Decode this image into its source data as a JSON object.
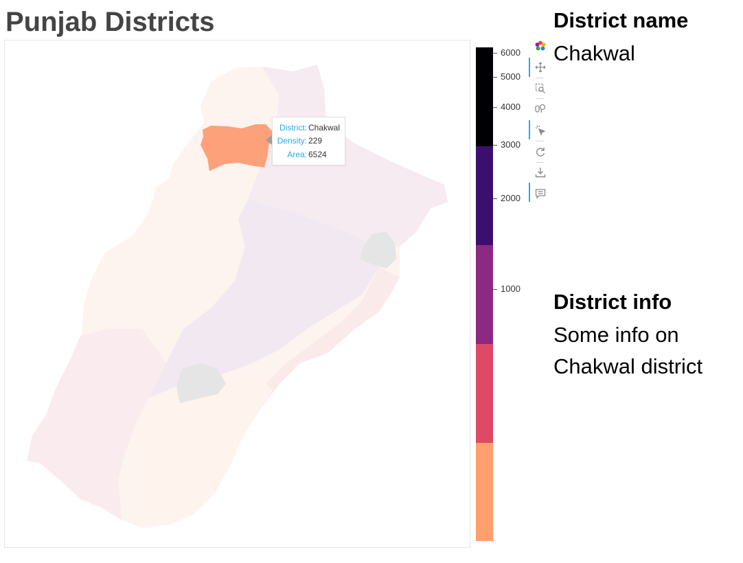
{
  "title": "Punjab Districts",
  "tooltip": {
    "district_key": "District:",
    "district_value": "Chakwal",
    "density_key": "Density:",
    "density_value": "229",
    "area_key": "Area:",
    "area_value": "6524"
  },
  "colorbar": {
    "colors": [
      "#000004",
      "#3b0f70",
      "#8c2981",
      "#de4968",
      "#fe9f6d"
    ],
    "tick_labels": [
      "6000",
      "5000",
      "4000",
      "3000",
      "2000",
      "1000"
    ]
  },
  "map": {
    "highlight_color": "#fca17a",
    "base_color": "#fdf0ea",
    "missing_color": "#e5e5e5"
  },
  "toolbar": {
    "tools": [
      "bokeh-logo-icon",
      "pan-icon",
      "box-zoom-icon",
      "lasso-select-icon",
      "tap-icon",
      "reset-icon",
      "save-icon",
      "hover-icon"
    ]
  },
  "panel": {
    "name_heading": "District name",
    "name_value": "Chakwal",
    "info_heading": "District info",
    "info_line1": "Some info on",
    "info_line2": "Chakwal district"
  }
}
